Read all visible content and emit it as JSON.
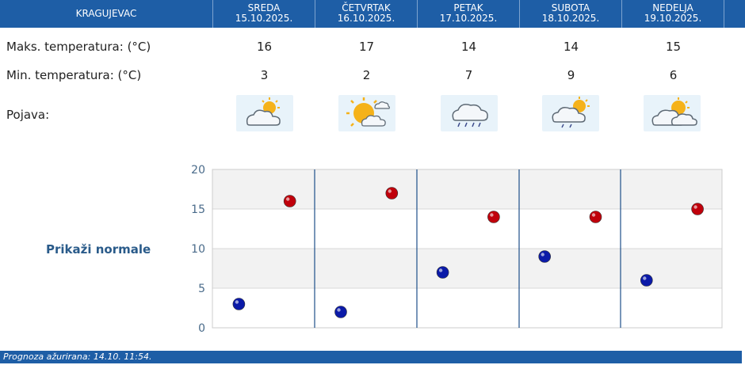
{
  "header": {
    "city": "KRAGUJEVAC",
    "days": [
      {
        "name": "SREDA",
        "date": "15.10.2025."
      },
      {
        "name": "ČETVRTAK",
        "date": "16.10.2025."
      },
      {
        "name": "PETAK",
        "date": "17.10.2025."
      },
      {
        "name": "SUBOTA",
        "date": "18.10.2025."
      },
      {
        "name": "NEDELJA",
        "date": "19.10.2025."
      }
    ]
  },
  "rows": {
    "max_label": "Maks. temperatura: (°C)",
    "min_label": "Min. temperatura: (°C)",
    "phen_label": "Pojava:",
    "max": [
      "16",
      "17",
      "14",
      "14",
      "15"
    ],
    "min": [
      "3",
      "2",
      "7",
      "9",
      "6"
    ],
    "icons": [
      "partly-cloudy-icon",
      "mostly-sunny-icon",
      "rain-cloud-icon",
      "cloud-sun-light-rain-icon",
      "sun-behind-clouds-icon"
    ]
  },
  "normals_link": "Prikaži normale",
  "chart_data": {
    "type": "scatter",
    "categories": [
      "SREDA",
      "ČETVRTAK",
      "PETAK",
      "SUBOTA",
      "NEDELJA"
    ],
    "series": [
      {
        "color": "#c0000b",
        "values": [
          16,
          17,
          14,
          14,
          15
        ]
      },
      {
        "color": "#0b1aa8",
        "values": [
          3,
          2,
          7,
          9,
          6
        ]
      }
    ],
    "ylim": [
      0,
      20
    ],
    "yticks": [
      "0",
      "5",
      "10",
      "15",
      "20"
    ],
    "grid": true
  },
  "footer": "Prognoza ažurirana:  14.10. 11:54."
}
